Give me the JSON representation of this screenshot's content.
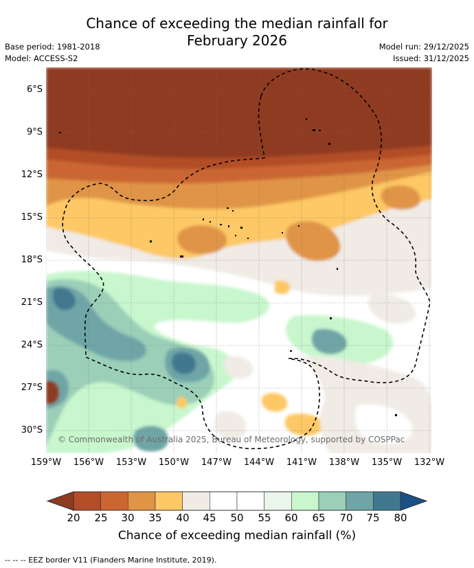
{
  "title": {
    "line1": "Chance of exceeding the median rainfall for",
    "line2": "February 2026"
  },
  "meta": {
    "base_period": "Base period: 1981-2018",
    "model": "Model: ACCESS-S2",
    "model_run": "Model run: 29/12/2025",
    "issued": "Issued: 31/12/2025"
  },
  "map": {
    "lat_labels": [
      "6°S",
      "9°S",
      "12°S",
      "15°S",
      "18°S",
      "21°S",
      "24°S",
      "27°S",
      "30°S"
    ],
    "lon_labels": [
      "159°W",
      "156°W",
      "153°W",
      "150°W",
      "147°W",
      "144°W",
      "141°W",
      "138°W",
      "135°W",
      "132°W"
    ],
    "copyright": "© Commonwealth of Australia 2025, Bureau of Meteorology, supported by COSPPac"
  },
  "colorbar": {
    "ticks": [
      "20",
      "25",
      "30",
      "35",
      "40",
      "45",
      "50",
      "55",
      "60",
      "65",
      "70",
      "75",
      "80"
    ],
    "colors": [
      "#8f3a21",
      "#b24d27",
      "#cb6631",
      "#e09446",
      "#fdc865",
      "#f0ebe5",
      "#ffffff",
      "#ffffff",
      "#eaf5ec",
      "#c8f7cd",
      "#9bcfb8",
      "#6fa5a7",
      "#42788f",
      "#1b4f86"
    ],
    "label": "Chance of exceeding median rainfall (%)"
  },
  "footnote": "--  --  -- EEZ border V11 (Flanders Marine Institute, 2019)."
}
